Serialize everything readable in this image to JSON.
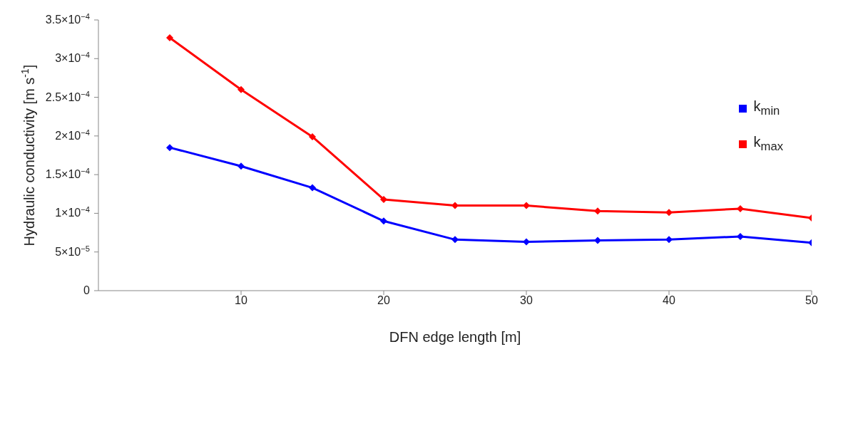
{
  "chart_data": {
    "type": "line",
    "xlabel": "DFN edge length [m]",
    "ylabel": "Hydraulic conductivity [m s$^{-1}$]",
    "x": [
      5,
      10,
      15,
      20,
      25,
      30,
      35,
      40,
      45,
      50
    ],
    "series": [
      {
        "name": "k$_{min}$",
        "color": "#0000ff",
        "values": [
          0.000185,
          0.000161,
          0.000133,
          9e-05,
          6.6e-05,
          6.3e-05,
          6.5e-05,
          6.6e-05,
          7e-05,
          6.2e-05
        ]
      },
      {
        "name": "k$_{max}$",
        "color": "#ff0000",
        "values": [
          0.000327,
          0.00026,
          0.000199,
          0.000118,
          0.00011,
          0.00011,
          0.000103,
          0.000101,
          0.000106,
          9.4e-05
        ]
      }
    ],
    "xlim": [
      0,
      50
    ],
    "xticks": [
      10,
      20,
      30,
      40,
      50
    ],
    "ylim": [
      0,
      0.00035
    ],
    "yticks": [
      0,
      {
        "value": 5e-05,
        "label": "5×10$^{−5}$"
      },
      {
        "value": 0.0001,
        "label": "1×10$^{−4}$"
      },
      {
        "value": 0.00015,
        "label": "1.5×10$^{−4}$"
      },
      {
        "value": 0.0002,
        "label": "2×10$^{−4}$"
      },
      {
        "value": 0.00025,
        "label": "2.5×10$^{−4}$"
      },
      {
        "value": 0.0003,
        "label": "3×10$^{−4}$"
      },
      {
        "value": 0.00035,
        "label": "3.5×10$^{−4}$"
      }
    ],
    "grid": false,
    "legend": "right",
    "marker": "diamond",
    "line_style": "solid"
  }
}
